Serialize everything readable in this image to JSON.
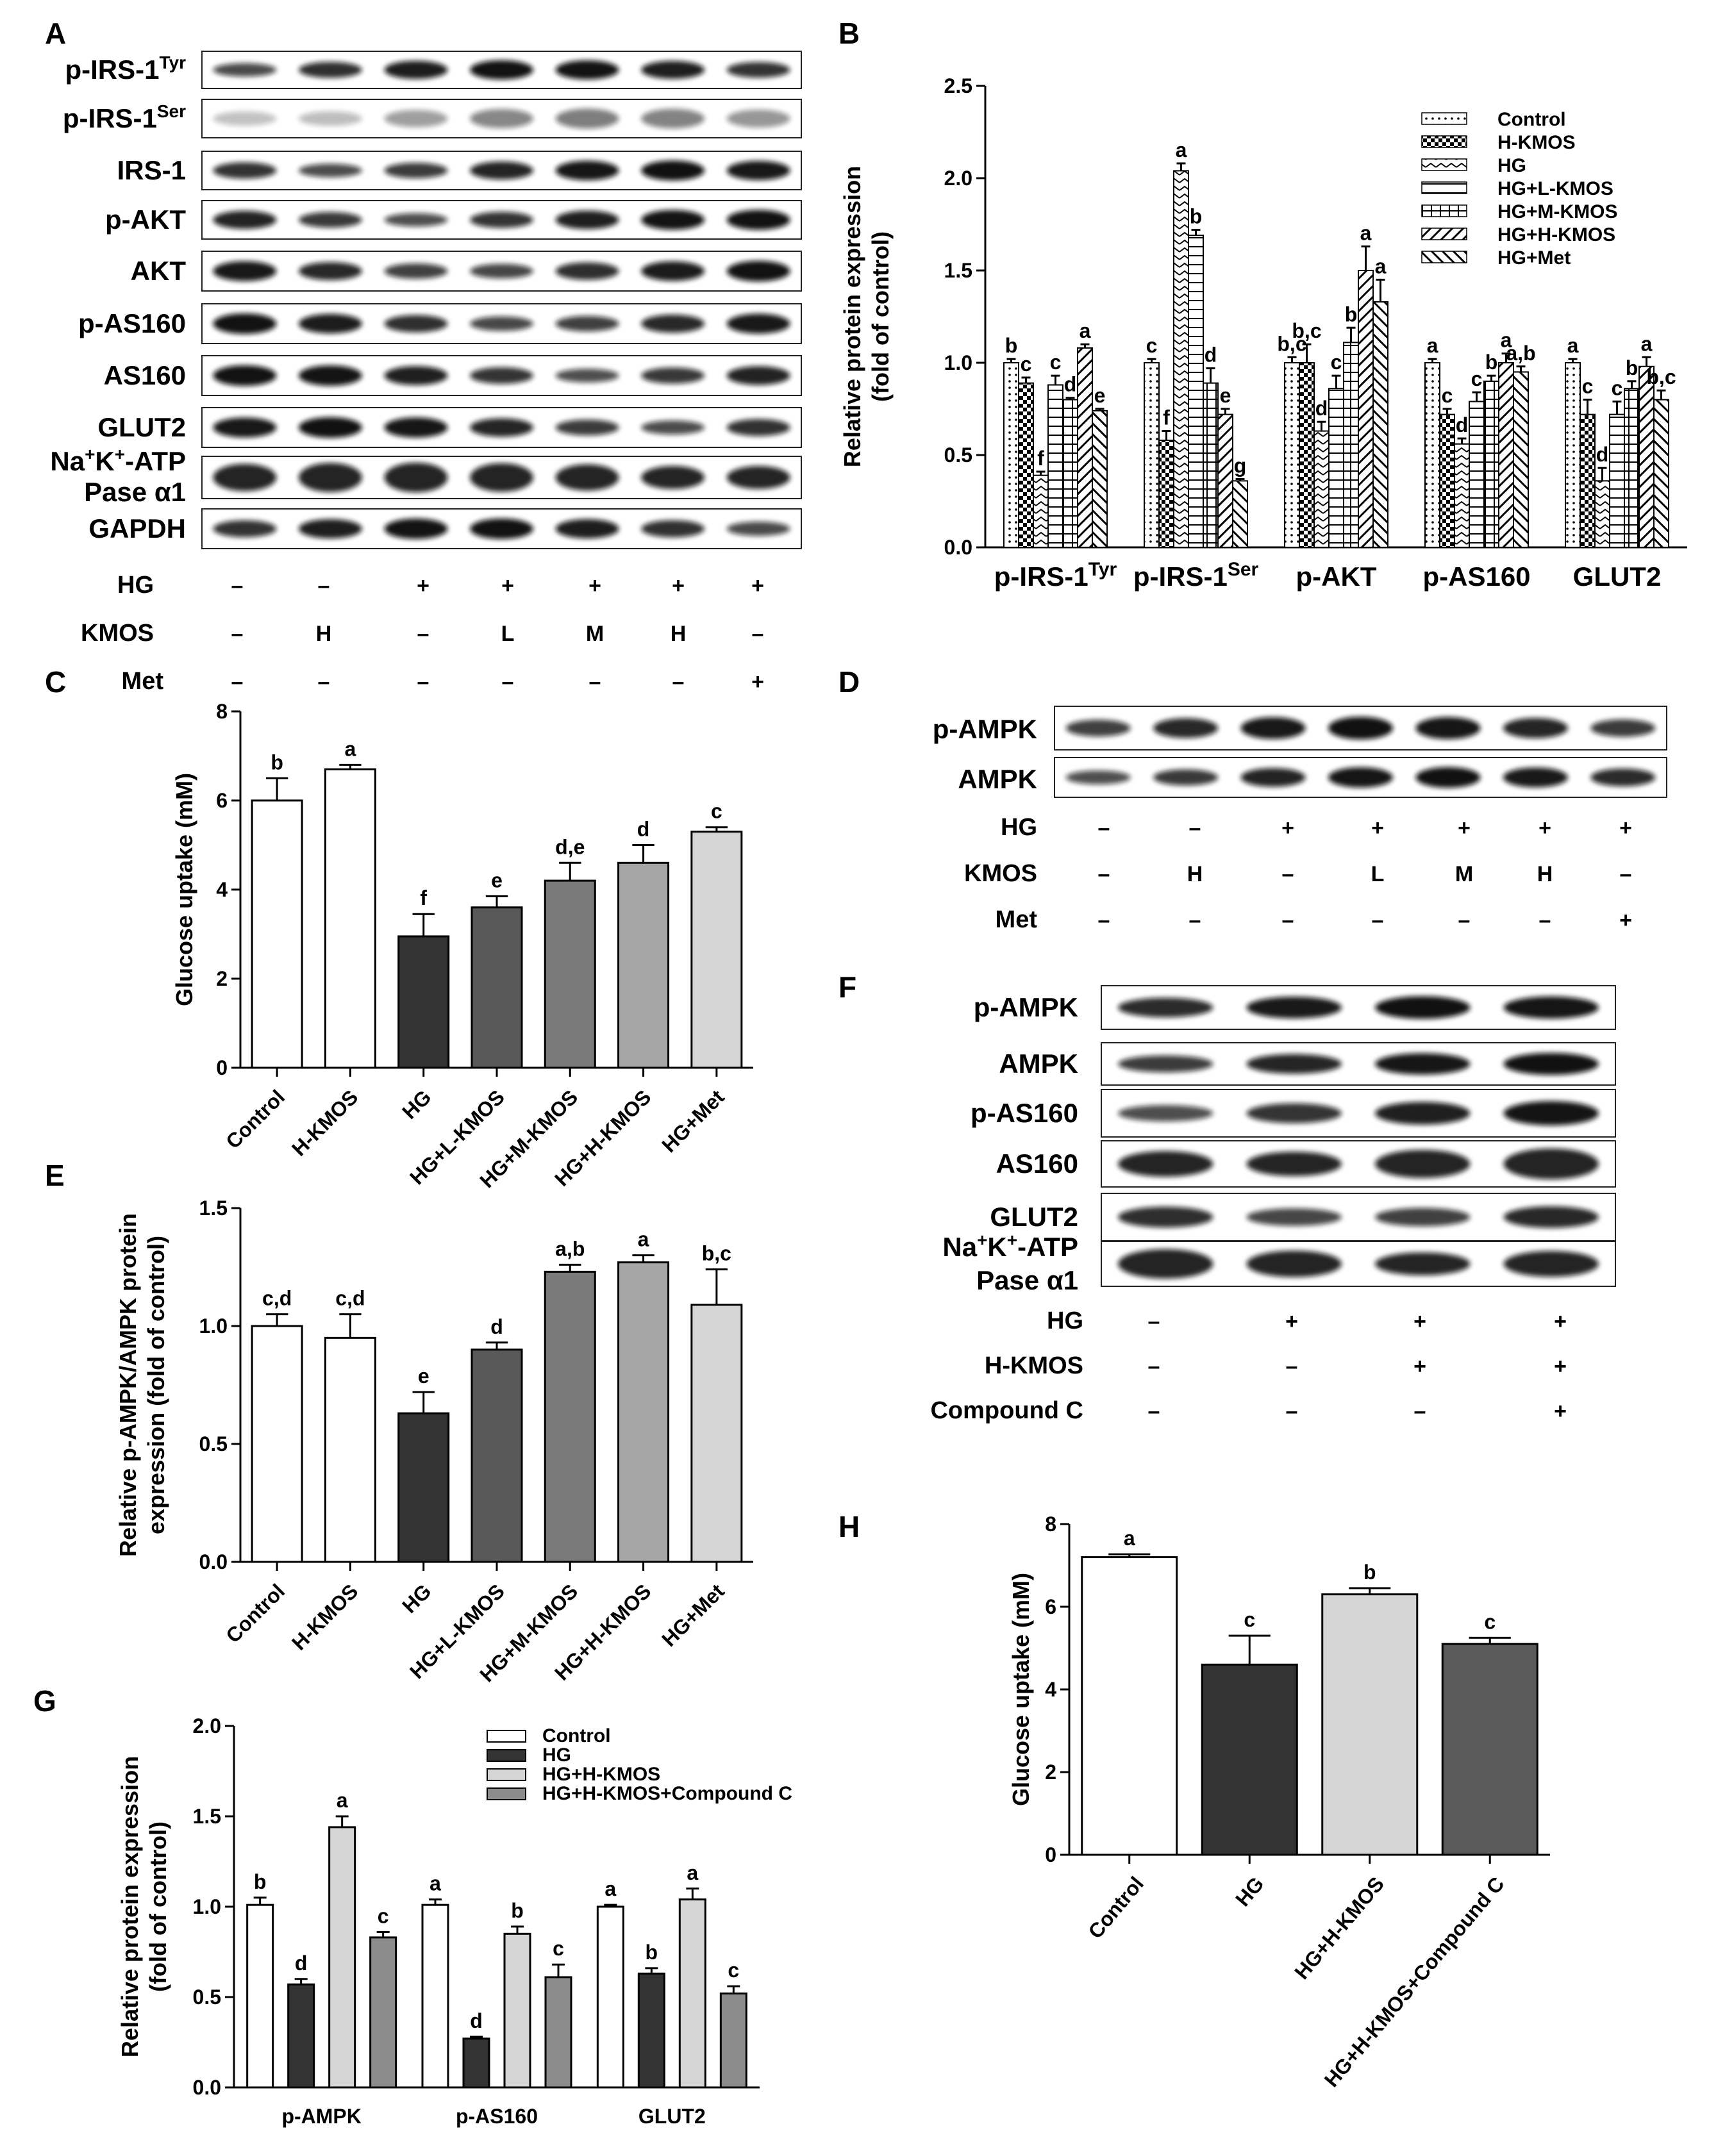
{
  "panels": {
    "A": {
      "label": "A",
      "blots": [
        "p-IRS-1^Tyr",
        "p-IRS-1^Ser",
        "IRS-1",
        "p-AKT",
        "AKT",
        "p-AS160",
        "AS160",
        "GLUT2",
        "Na+K+-ATP Pase α1",
        "GAPDH"
      ],
      "blot_labels": [
        {
          "text": "p-IRS-1",
          "sup": "Tyr"
        },
        {
          "text": "p-IRS-1",
          "sup": "Ser"
        },
        {
          "text": "IRS-1",
          "sup": ""
        },
        {
          "text": "p-AKT",
          "sup": ""
        },
        {
          "text": "AKT",
          "sup": ""
        },
        {
          "text": "p-AS160",
          "sup": ""
        },
        {
          "text": "AS160",
          "sup": ""
        },
        {
          "text": "GLUT2",
          "sup": ""
        },
        {
          "text": "Na",
          "sup": "+",
          "text2": "K",
          "sup2": "+",
          "text3": "-ATP",
          "line2": "Pase α1"
        },
        {
          "text": "GAPDH",
          "sup": ""
        }
      ],
      "treatments": [
        {
          "name": "HG",
          "values": [
            "–",
            "–",
            "+",
            "+",
            "+",
            "+",
            "+"
          ]
        },
        {
          "name": "KMOS",
          "values": [
            "–",
            "H",
            "–",
            "L",
            "M",
            "H",
            "–"
          ]
        },
        {
          "name": "Met",
          "values": [
            "–",
            "–",
            "–",
            "–",
            "–",
            "–",
            "+"
          ]
        }
      ]
    },
    "B": {
      "label": "B"
    },
    "C": {
      "label": "C"
    },
    "D": {
      "label": "D",
      "blots": [
        "p-AMPK",
        "AMPK"
      ],
      "treatments": [
        {
          "name": "HG",
          "values": [
            "–",
            "–",
            "+",
            "+",
            "+",
            "+",
            "+"
          ]
        },
        {
          "name": "KMOS",
          "values": [
            "–",
            "H",
            "–",
            "L",
            "M",
            "H",
            "–"
          ]
        },
        {
          "name": "Met",
          "values": [
            "–",
            "–",
            "–",
            "–",
            "–",
            "–",
            "+"
          ]
        }
      ]
    },
    "E": {
      "label": "E"
    },
    "F": {
      "label": "F",
      "blots": [
        "p-AMPK",
        "AMPK",
        "p-AS160",
        "AS160",
        "GLUT2"
      ],
      "blot_last": {
        "text": "Na",
        "sup": "+",
        "text2": "K",
        "sup2": "+",
        "text3": "-ATP",
        "line2": "Pase α1"
      },
      "treatments": [
        {
          "name": "HG",
          "values": [
            "–",
            "+",
            "+",
            "+"
          ]
        },
        {
          "name": "H-KMOS",
          "values": [
            "–",
            "–",
            "+",
            "+"
          ]
        },
        {
          "name": "Compound C",
          "values": [
            "–",
            "–",
            "–",
            "+"
          ]
        }
      ]
    },
    "G": {
      "label": "G"
    },
    "H": {
      "label": "H"
    }
  },
  "chart_data": [
    {
      "id": "B",
      "type": "bar",
      "ylabel": "Relative protein expression (fold of control)",
      "ylim": [
        0,
        2.5
      ],
      "yticks": [
        0.0,
        0.5,
        1.0,
        1.5,
        2.0,
        2.5
      ],
      "grid": false,
      "legend_position": "top-right",
      "categories": [
        {
          "text": "p-IRS-1",
          "sup": "Tyr"
        },
        {
          "text": "p-IRS-1",
          "sup": "Ser"
        },
        {
          "text": "p-AKT",
          "sup": ""
        },
        {
          "text": "p-AS160",
          "sup": ""
        },
        {
          "text": "GLUT2",
          "sup": ""
        }
      ],
      "series": [
        {
          "name": "Control",
          "pattern": "dots",
          "values": [
            1.0,
            1.0,
            1.0,
            1.0,
            1.0
          ],
          "errors": [
            0.02,
            0.02,
            0.03,
            0.02,
            0.02
          ],
          "letters": [
            "b",
            "c",
            "b,c",
            "a",
            "a"
          ]
        },
        {
          "name": "H-KMOS",
          "pattern": "checker",
          "values": [
            0.89,
            0.58,
            1.0,
            0.72,
            0.72
          ],
          "errors": [
            0.03,
            0.05,
            0.1,
            0.03,
            0.08
          ],
          "letters": [
            "c",
            "f",
            "b,c",
            "c",
            "c"
          ]
        },
        {
          "name": "HG",
          "pattern": "zigzag",
          "values": [
            0.39,
            2.04,
            0.63,
            0.56,
            0.36
          ],
          "errors": [
            0.02,
            0.04,
            0.05,
            0.03,
            0.07
          ],
          "letters": [
            "f",
            "a",
            "d",
            "d",
            "d"
          ]
        },
        {
          "name": "HG+L-KMOS",
          "pattern": "hlines",
          "values": [
            0.88,
            1.69,
            0.86,
            0.79,
            0.72
          ],
          "errors": [
            0.05,
            0.03,
            0.07,
            0.05,
            0.07
          ],
          "letters": [
            "c",
            "b",
            "c",
            "c",
            "c"
          ]
        },
        {
          "name": "HG+M-KMOS",
          "pattern": "grid",
          "values": [
            0.8,
            0.89,
            1.11,
            0.9,
            0.86
          ],
          "errors": [
            0.01,
            0.08,
            0.08,
            0.03,
            0.04
          ],
          "letters": [
            "d",
            "d",
            "b",
            "b",
            "b"
          ]
        },
        {
          "name": "HG+H-KMOS",
          "pattern": "diag",
          "values": [
            1.08,
            0.72,
            1.5,
            1.0,
            0.98
          ],
          "errors": [
            0.02,
            0.03,
            0.13,
            0.05,
            0.05
          ],
          "letters": [
            "a",
            "e",
            "a",
            "a",
            "a"
          ]
        },
        {
          "name": "HG+Met",
          "pattern": "backdiag",
          "values": [
            0.74,
            0.36,
            1.33,
            0.95,
            0.8
          ],
          "errors": [
            0.01,
            0.01,
            0.12,
            0.03,
            0.05
          ],
          "letters": [
            "e",
            "g",
            "a",
            "a,b",
            "b,c"
          ]
        }
      ]
    },
    {
      "id": "C",
      "type": "bar",
      "ylabel": "Glucose uptake (mM)",
      "ylim": [
        0,
        8
      ],
      "yticks": [
        0,
        2,
        4,
        6,
        8
      ],
      "grid": false,
      "categories": [
        "Control",
        "H-KMOS",
        "HG",
        "HG+L-KMOS",
        "HG+M-KMOS",
        "HG+H-KMOS",
        "HG+Met"
      ],
      "values": [
        6.0,
        6.7,
        2.95,
        3.6,
        4.2,
        4.6,
        5.3
      ],
      "errors": [
        0.5,
        0.1,
        0.5,
        0.25,
        0.4,
        0.4,
        0.1
      ],
      "letters": [
        "b",
        "a",
        "f",
        "e",
        "d,e",
        "d",
        "c"
      ],
      "colors": [
        "#ffffff",
        "#ffffff",
        "#333333",
        "#595959",
        "#7a7a7a",
        "#a6a6a6",
        "#d6d6d6"
      ]
    },
    {
      "id": "E",
      "type": "bar",
      "ylabel": "Relative p-AMPK/AMPK protein expression (fold of control)",
      "ylim": [
        0,
        1.5
      ],
      "yticks": [
        0.0,
        0.5,
        1.0,
        1.5
      ],
      "grid": false,
      "categories": [
        "Control",
        "H-KMOS",
        "HG",
        "HG+L-KMOS",
        "HG+M-KMOS",
        "HG+H-KMOS",
        "HG+Met"
      ],
      "values": [
        1.0,
        0.95,
        0.63,
        0.9,
        1.23,
        1.27,
        1.09
      ],
      "errors": [
        0.05,
        0.1,
        0.09,
        0.03,
        0.03,
        0.03,
        0.15
      ],
      "letters": [
        "c,d",
        "c,d",
        "e",
        "d",
        "a,b",
        "a",
        "b,c"
      ],
      "colors": [
        "#ffffff",
        "#ffffff",
        "#333333",
        "#595959",
        "#7a7a7a",
        "#a6a6a6",
        "#d6d6d6"
      ]
    },
    {
      "id": "G",
      "type": "bar",
      "ylabel": "Relative protein expression (fold of control)",
      "ylim": [
        0,
        2.0
      ],
      "yticks": [
        0.0,
        0.5,
        1.0,
        1.5,
        2.0
      ],
      "grid": false,
      "legend_position": "top-right",
      "categories": [
        "p-AMPK",
        "p-AS160",
        "GLUT2"
      ],
      "series": [
        {
          "name": "Control",
          "color": "#ffffff",
          "values": [
            1.01,
            1.01,
            1.0
          ],
          "errors": [
            0.04,
            0.03,
            0.01
          ],
          "letters": [
            "b",
            "a",
            "a"
          ]
        },
        {
          "name": "HG",
          "color": "#333333",
          "values": [
            0.57,
            0.27,
            0.63
          ],
          "errors": [
            0.03,
            0.01,
            0.03
          ],
          "letters": [
            "d",
            "d",
            "b"
          ]
        },
        {
          "name": "HG+H-KMOS",
          "color": "#d6d6d6",
          "values": [
            1.44,
            0.85,
            1.04
          ],
          "errors": [
            0.06,
            0.04,
            0.06
          ],
          "letters": [
            "a",
            "b",
            "a"
          ]
        },
        {
          "name": "HG+H-KMOS+Compound C",
          "color": "#8c8c8c",
          "values": [
            0.83,
            0.61,
            0.52
          ],
          "errors": [
            0.03,
            0.07,
            0.04
          ],
          "letters": [
            "c",
            "c",
            "c"
          ]
        }
      ]
    },
    {
      "id": "H",
      "type": "bar",
      "ylabel": "Glucose uptake (mM)",
      "ylim": [
        0,
        8
      ],
      "yticks": [
        0,
        2,
        4,
        6,
        8
      ],
      "grid": false,
      "categories": [
        "Control",
        "HG",
        "HG+H-KMOS",
        "HG+H-KMOS+Compound C"
      ],
      "values": [
        7.2,
        4.6,
        6.3,
        5.1
      ],
      "errors": [
        0.07,
        0.7,
        0.15,
        0.15
      ],
      "letters": [
        "a",
        "c",
        "b",
        "c"
      ],
      "colors": [
        "#ffffff",
        "#333333",
        "#d6d6d6",
        "#5a5a5a"
      ]
    }
  ]
}
